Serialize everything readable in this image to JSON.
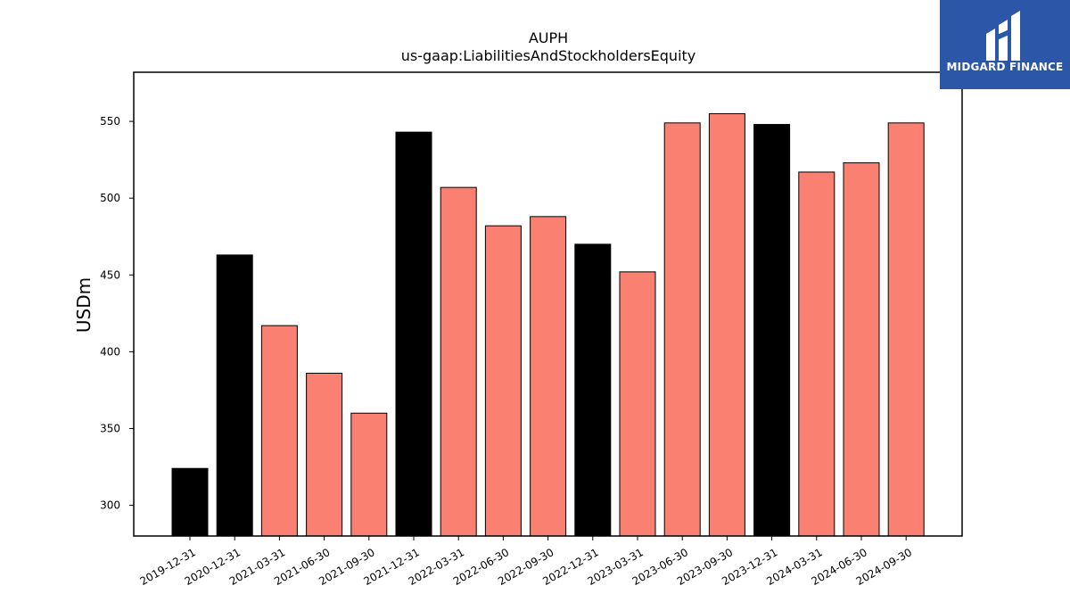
{
  "chart_data": {
    "type": "bar",
    "title": "AUPH",
    "subtitle": "us-gaap:LiabilitiesAndStockholdersEquity",
    "xlabel": "",
    "ylabel": "USDm",
    "ylim": [
      280,
      582
    ],
    "yticks": [
      300,
      350,
      400,
      450,
      500,
      550
    ],
    "grid": false,
    "categories": [
      "2019-12-31",
      "2020-12-31",
      "2021-03-31",
      "2021-06-30",
      "2021-09-30",
      "2021-12-31",
      "2022-03-31",
      "2022-06-30",
      "2022-09-30",
      "2022-12-31",
      "2023-03-31",
      "2023-06-30",
      "2023-09-30",
      "2023-12-31",
      "2024-03-31",
      "2024-06-30",
      "2024-09-30"
    ],
    "values": [
      324,
      463,
      417,
      386,
      360,
      543,
      507,
      482,
      488,
      470,
      452,
      549,
      555,
      548,
      517,
      523,
      549
    ],
    "period_type": [
      "annual",
      "annual",
      "quarter",
      "quarter",
      "quarter",
      "annual",
      "quarter",
      "quarter",
      "quarter",
      "annual",
      "quarter",
      "quarter",
      "quarter",
      "annual",
      "quarter",
      "quarter",
      "quarter"
    ],
    "colors": {
      "annual": "#000000",
      "quarter": "#fa8072"
    }
  },
  "logo": {
    "text": "MIDGARD FINANCE",
    "bg": "#2c56a8"
  }
}
